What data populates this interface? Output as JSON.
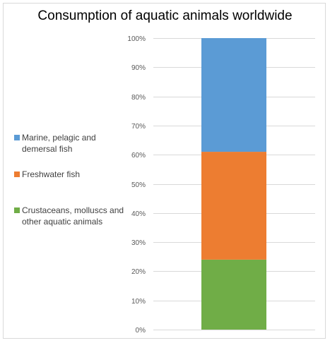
{
  "chart_data": {
    "type": "bar",
    "stacked": true,
    "percent": true,
    "title": "Consumption of aquatic animals worldwide",
    "categories": [
      ""
    ],
    "series": [
      {
        "name": "Crustaceans, molluscs and other aquatic animals",
        "values": [
          24
        ],
        "color": "#70ad47"
      },
      {
        "name": "Freshwater fish",
        "values": [
          37
        ],
        "color": "#ed7d31"
      },
      {
        "name": "Marine, pelagic and demersal fish",
        "values": [
          39
        ],
        "color": "#5b9bd5"
      }
    ],
    "ylim": [
      0,
      100
    ],
    "yticks": [
      "0%",
      "10%",
      "20%",
      "30%",
      "40%",
      "50%",
      "60%",
      "70%",
      "80%",
      "90%",
      "100%"
    ],
    "grid": true,
    "legend_position": "left"
  }
}
